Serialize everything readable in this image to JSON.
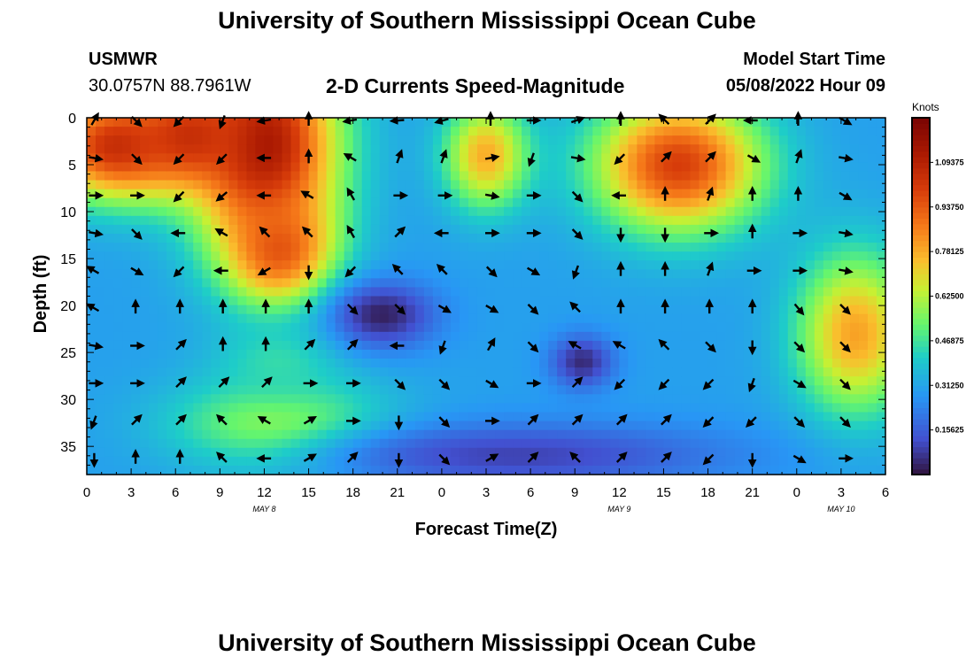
{
  "header": {
    "title": "University of Southern Mississippi Ocean Cube",
    "station": "USMWR",
    "coords": "30.0757N  88.7961W",
    "subtitle": "2-D Currents Speed-Magnitude",
    "model_label": "Model Start Time",
    "model_time": "05/08/2022 Hour 09"
  },
  "footer": {
    "title": "University of Southern Mississippi Ocean Cube"
  },
  "colors": {
    "arrow": "#000000",
    "background": "#ffffff"
  },
  "chart_data": {
    "type": "heatmap",
    "title": "2-D Currents Speed-Magnitude",
    "xlabel": "Forecast Time(Z)",
    "ylabel": "Depth (ft)",
    "xlim": [
      0,
      54
    ],
    "ylim": [
      0,
      38
    ],
    "x_tick_values": [
      0,
      3,
      6,
      9,
      12,
      15,
      18,
      21,
      24,
      27,
      30,
      33,
      36,
      39,
      42,
      45,
      48,
      51,
      54
    ],
    "x_tick_labels": [
      "0",
      "3",
      "6",
      "9",
      "12",
      "15",
      "18",
      "21",
      "0",
      "3",
      "6",
      "9",
      "12",
      "15",
      "18",
      "21",
      "0",
      "3",
      "6"
    ],
    "y_tick_values": [
      0,
      5,
      10,
      15,
      20,
      25,
      30,
      35
    ],
    "y_tick_labels": [
      "0",
      "5",
      "10",
      "15",
      "20",
      "25",
      "30",
      "35"
    ],
    "day_labels": [
      {
        "x": 12,
        "label": "MAY 8"
      },
      {
        "x": 36,
        "label": "MAY 9"
      },
      {
        "x": 51,
        "label": "MAY 10"
      }
    ],
    "colorbar": {
      "label": "Knots",
      "range": [
        0,
        1.25
      ],
      "ticks": [
        0.15625,
        0.3125,
        0.46875,
        0.625,
        0.78125,
        0.9375,
        1.09375
      ],
      "tick_labels": [
        "0.15625",
        "0.31250",
        "0.46875",
        "0.62500",
        "0.78125",
        "0.93750",
        "1.09375"
      ]
    },
    "arrow_x": [
      0.5,
      3.3,
      6.3,
      9.2,
      12.1,
      15,
      17.9,
      21.1,
      24.1,
      27.3,
      30.1,
      33.1,
      36.1,
      39.1,
      42.1,
      45,
      48.1,
      51.2
    ],
    "arrow_depths": [
      0,
      4,
      8,
      12,
      16,
      20,
      24,
      28,
      32,
      36
    ],
    "arrow_directions_deg": [
      [
        30,
        135,
        225,
        200,
        260,
        0,
        260,
        265,
        255,
        0,
        90,
        70,
        0,
        315,
        45,
        270,
        0,
        120
      ],
      [
        100,
        135,
        225,
        225,
        270,
        0,
        300,
        20,
        20,
        80,
        200,
        100,
        225,
        45,
        45,
        120,
        20,
        100
      ],
      [
        90,
        90,
        225,
        230,
        270,
        300,
        330,
        90,
        90,
        100,
        90,
        135,
        270,
        0,
        20,
        0,
        0,
        120
      ],
      [
        100,
        135,
        270,
        300,
        315,
        315,
        330,
        45,
        270,
        90,
        90,
        135,
        180,
        180,
        90,
        0,
        90,
        100
      ],
      [
        300,
        120,
        225,
        270,
        240,
        180,
        225,
        315,
        315,
        135,
        120,
        200,
        0,
        0,
        20,
        90,
        90,
        100
      ],
      [
        300,
        0,
        0,
        0,
        0,
        0,
        135,
        135,
        120,
        120,
        135,
        315,
        0,
        0,
        0,
        0,
        140,
        135
      ],
      [
        100,
        90,
        45,
        0,
        0,
        45,
        45,
        270,
        200,
        30,
        135,
        300,
        300,
        315,
        135,
        180,
        135,
        135
      ],
      [
        90,
        90,
        45,
        45,
        45,
        90,
        90,
        135,
        135,
        120,
        90,
        45,
        225,
        225,
        225,
        200,
        120,
        135
      ],
      [
        200,
        45,
        45,
        315,
        300,
        60,
        90,
        180,
        135,
        90,
        45,
        45,
        45,
        45,
        225,
        225,
        135,
        135
      ],
      [
        180,
        0,
        0,
        315,
        270,
        60,
        45,
        180,
        135,
        60,
        45,
        315,
        45,
        45,
        225,
        180,
        120,
        90
      ]
    ],
    "field_centers": [
      {
        "x": 12,
        "depth": 3,
        "speed": 1.15,
        "sx": 3.5,
        "sy": 8
      },
      {
        "x": 2,
        "depth": 3,
        "speed": 1.05,
        "sx": 3.5,
        "sy": 4
      },
      {
        "x": 7,
        "depth": 2,
        "speed": 1.05,
        "sx": 3,
        "sy": 3.5
      },
      {
        "x": 13,
        "depth": 14,
        "speed": 0.95,
        "sx": 2.5,
        "sy": 4
      },
      {
        "x": 27,
        "depth": 4,
        "speed": 0.78,
        "sx": 2,
        "sy": 4
      },
      {
        "x": 40,
        "depth": 5,
        "speed": 1.0,
        "sx": 4,
        "sy": 5
      },
      {
        "x": 52,
        "depth": 23,
        "speed": 0.8,
        "sx": 2.8,
        "sy": 6
      },
      {
        "x": 13,
        "depth": 33,
        "speed": 0.62,
        "sx": 5,
        "sy": 3.5
      },
      {
        "x": 13,
        "depth": 26,
        "speed": 0.45,
        "sx": 3,
        "sy": 3
      },
      {
        "x": 20,
        "depth": 21,
        "speed": 0.03,
        "sx": 2.5,
        "sy": 2.5
      },
      {
        "x": 33.5,
        "depth": 26,
        "speed": 0.05,
        "sx": 1.5,
        "sy": 2
      },
      {
        "x": 29,
        "depth": 36,
        "speed": 0.1,
        "sx": 10,
        "sy": 2.5
      }
    ]
  }
}
